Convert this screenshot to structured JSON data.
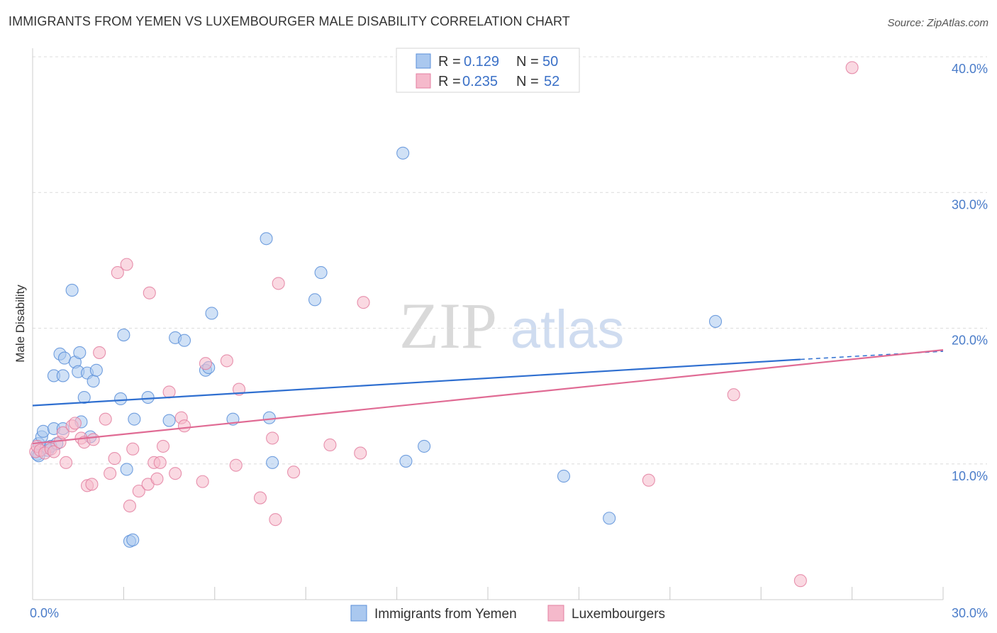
{
  "header": {
    "title": "IMMIGRANTS FROM YEMEN VS LUXEMBOURGER MALE DISABILITY CORRELATION CHART",
    "source": "Source: ZipAtlas.com"
  },
  "watermark": {
    "zip": "ZIP",
    "atlas": "atlas"
  },
  "legend_top": [
    {
      "r_label": "R =",
      "r_value": "0.129",
      "n_label": "N =",
      "n_value": "50",
      "color": "#aac8ef"
    },
    {
      "r_label": "R =",
      "r_value": "0.235",
      "n_label": "N =",
      "n_value": "52",
      "color": "#f5b9cb"
    }
  ],
  "chart_data": {
    "type": "scatter",
    "title": "IMMIGRANTS FROM YEMEN VS LUXEMBOURGER MALE DISABILITY CORRELATION CHART",
    "ylabel": "Male Disability",
    "xlim": [
      0,
      30
    ],
    "ylim": [
      0,
      40
    ],
    "x_tick_labels": [
      {
        "value": 0,
        "label": "0.0%"
      },
      {
        "value": 30,
        "label": "30.0%"
      }
    ],
    "y_tick_labels": [
      {
        "value": 10,
        "label": "10.0%"
      },
      {
        "value": 20,
        "label": "20.0%"
      },
      {
        "value": 30,
        "label": "30.0%"
      },
      {
        "value": 40,
        "label": "40.0%"
      }
    ],
    "grid": "horizontal-dashed",
    "legend_placement": "top-center",
    "series": [
      {
        "name": "Immigrants from Yemen",
        "color": "#5b8fd9",
        "fill": "#aac8ef",
        "trend": {
          "x0": 0,
          "y0": 14.3,
          "x1": 25.3,
          "y1": 17.7,
          "dashed_to_x": 30,
          "dashed_to_y": 18.3,
          "color": "#2f6fd0"
        },
        "points": [
          [
            0.15,
            10.7
          ],
          [
            0.2,
            11.5
          ],
          [
            0.3,
            12.0
          ],
          [
            0.35,
            12.4
          ],
          [
            0.45,
            11.2
          ],
          [
            0.5,
            11.0
          ],
          [
            0.6,
            11.3
          ],
          [
            0.7,
            12.6
          ],
          [
            0.8,
            11.5
          ],
          [
            0.9,
            18.1
          ],
          [
            1.0,
            12.6
          ],
          [
            1.05,
            17.8
          ],
          [
            1.3,
            22.8
          ],
          [
            1.4,
            17.5
          ],
          [
            1.5,
            16.8
          ],
          [
            1.55,
            18.2
          ],
          [
            1.6,
            13.1
          ],
          [
            1.7,
            14.9
          ],
          [
            1.8,
            16.7
          ],
          [
            1.9,
            12.0
          ],
          [
            2.0,
            16.1
          ],
          [
            2.1,
            16.9
          ],
          [
            0.7,
            16.5
          ],
          [
            1.0,
            16.5
          ],
          [
            2.9,
            14.8
          ],
          [
            3.0,
            19.5
          ],
          [
            3.1,
            9.6
          ],
          [
            3.2,
            4.3
          ],
          [
            3.3,
            4.4
          ],
          [
            3.35,
            13.3
          ],
          [
            3.8,
            14.9
          ],
          [
            4.5,
            13.2
          ],
          [
            4.7,
            19.3
          ],
          [
            5.0,
            19.1
          ],
          [
            5.7,
            16.9
          ],
          [
            5.8,
            17.1
          ],
          [
            5.9,
            21.1
          ],
          [
            6.6,
            13.3
          ],
          [
            7.8,
            13.4
          ],
          [
            7.7,
            26.6
          ],
          [
            7.9,
            10.1
          ],
          [
            9.3,
            22.1
          ],
          [
            9.5,
            24.1
          ],
          [
            12.2,
            32.9
          ],
          [
            12.3,
            10.2
          ],
          [
            12.9,
            11.3
          ],
          [
            17.5,
            9.1
          ],
          [
            19.0,
            6.0
          ],
          [
            22.5,
            20.5
          ],
          [
            0.2,
            10.6
          ]
        ]
      },
      {
        "name": "Luxembourgers",
        "color": "#e37fa0",
        "fill": "#f5b9cb",
        "trend": {
          "x0": 0,
          "y0": 11.5,
          "x1": 30,
          "y1": 18.4,
          "color": "#e06b94"
        },
        "points": [
          [
            0.1,
            10.9
          ],
          [
            0.15,
            11.3
          ],
          [
            0.25,
            11.0
          ],
          [
            0.4,
            10.8
          ],
          [
            0.6,
            11.1
          ],
          [
            0.7,
            10.9
          ],
          [
            0.9,
            11.6
          ],
          [
            1.0,
            12.3
          ],
          [
            1.1,
            10.1
          ],
          [
            1.3,
            12.8
          ],
          [
            1.4,
            13.0
          ],
          [
            1.6,
            11.9
          ],
          [
            1.7,
            11.6
          ],
          [
            1.8,
            8.4
          ],
          [
            1.95,
            8.5
          ],
          [
            2.0,
            11.8
          ],
          [
            2.2,
            18.2
          ],
          [
            2.4,
            13.3
          ],
          [
            2.55,
            9.3
          ],
          [
            2.7,
            10.4
          ],
          [
            2.8,
            24.1
          ],
          [
            3.1,
            24.7
          ],
          [
            3.2,
            6.9
          ],
          [
            3.3,
            11.1
          ],
          [
            3.5,
            8.0
          ],
          [
            3.8,
            8.5
          ],
          [
            3.85,
            22.6
          ],
          [
            4.0,
            10.1
          ],
          [
            4.1,
            8.9
          ],
          [
            4.2,
            10.1
          ],
          [
            4.3,
            11.3
          ],
          [
            4.5,
            15.3
          ],
          [
            4.7,
            9.3
          ],
          [
            4.9,
            13.4
          ],
          [
            5.0,
            12.8
          ],
          [
            5.6,
            8.7
          ],
          [
            5.7,
            17.4
          ],
          [
            6.4,
            17.6
          ],
          [
            6.7,
            9.9
          ],
          [
            6.8,
            15.5
          ],
          [
            7.5,
            7.5
          ],
          [
            7.9,
            11.9
          ],
          [
            8.0,
            5.9
          ],
          [
            8.1,
            23.3
          ],
          [
            8.6,
            9.4
          ],
          [
            9.8,
            11.4
          ],
          [
            10.8,
            10.8
          ],
          [
            10.9,
            21.9
          ],
          [
            20.3,
            8.8
          ],
          [
            23.1,
            15.1
          ],
          [
            25.3,
            1.4
          ],
          [
            27.0,
            39.2
          ]
        ]
      }
    ]
  },
  "legend_bottom": [
    {
      "label": "Immigrants from Yemen",
      "color": "#aac8ef",
      "stroke": "#5b8fd9"
    },
    {
      "label": "Luxembourgers",
      "color": "#f5b9cb",
      "stroke": "#e37fa0"
    }
  ]
}
